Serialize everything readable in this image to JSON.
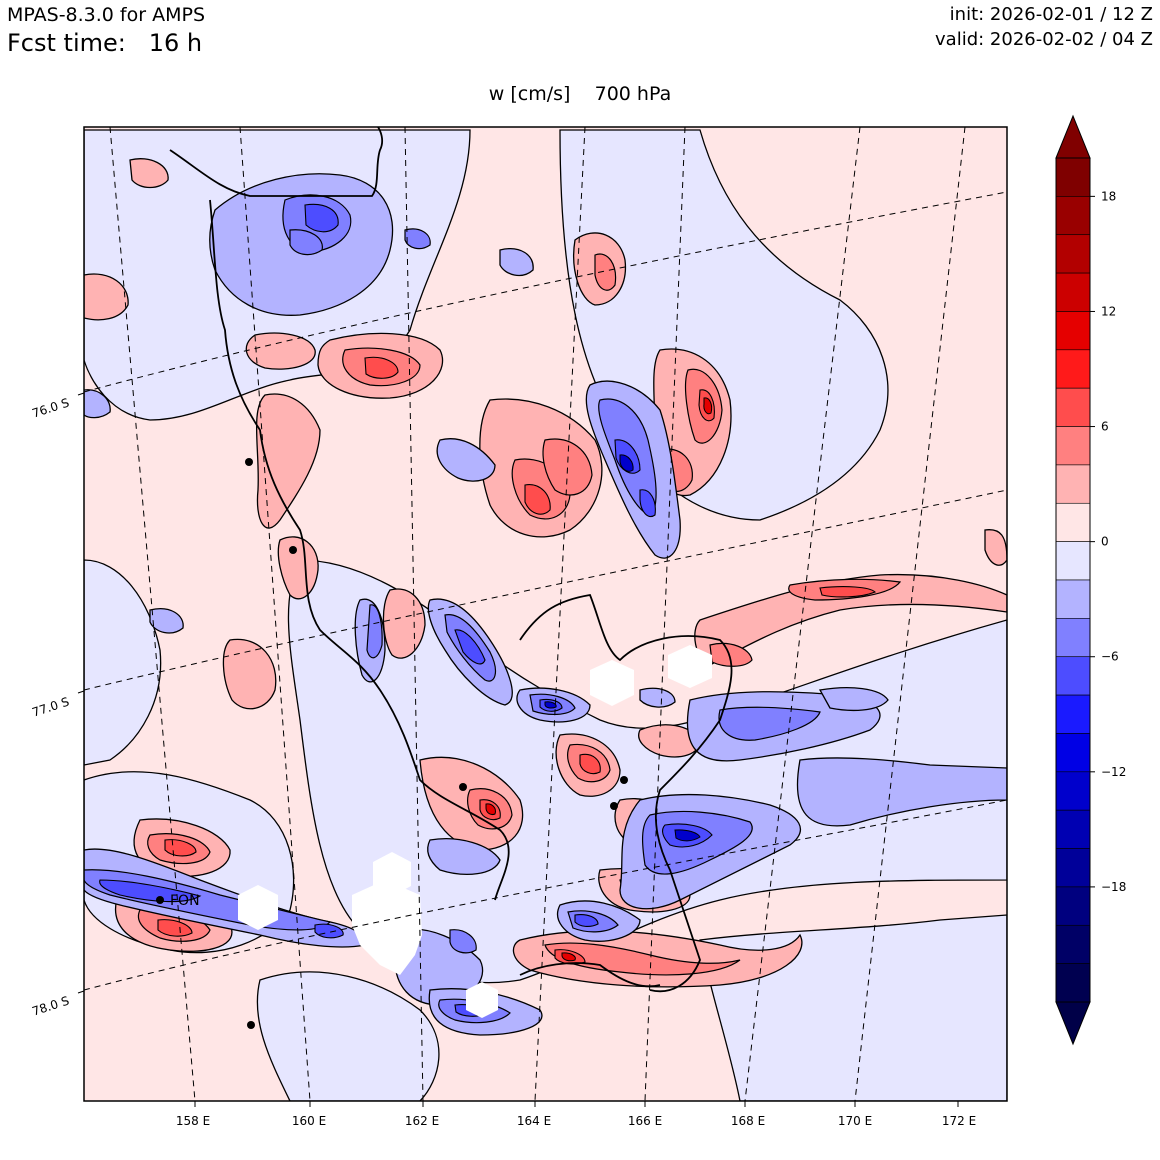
{
  "header": {
    "model": "MPAS-8.3.0 for AMPS",
    "fcst_label": "Fcst time:",
    "fcst_value": "16 h",
    "init": "init: 2026-02-01 / 12 Z",
    "valid": "valid: 2026-02-02 / 04 Z"
  },
  "title": {
    "variable": "w [cm/s]",
    "level": "700 hPa"
  },
  "axes": {
    "lon_ticks": [
      "158 E",
      "160 E",
      "162 E",
      "164 E",
      "166 E",
      "168 E",
      "170 E",
      "172 E"
    ],
    "lat_ticks": [
      "76.0 S",
      "77.0 S",
      "78.0 S"
    ]
  },
  "stations": [
    {
      "label": "FON"
    }
  ],
  "colorbar": {
    "tick_labels": [
      "18",
      "12",
      "6",
      "0",
      "−6",
      "−12",
      "−18"
    ],
    "colors": [
      "#7f0000",
      "#990000",
      "#b20000",
      "#cc0000",
      "#e50000",
      "#ff1a1a",
      "#ff4d4d",
      "#ff8080",
      "#ffb3b3",
      "#ffe6e6",
      "#e6e6ff",
      "#b3b3ff",
      "#8080ff",
      "#4d4dff",
      "#1a1aff",
      "#0000e5",
      "#0000cc",
      "#0000b2",
      "#000099",
      "#00007f",
      "#000066",
      "#000050"
    ],
    "extend_top_color": "#800000",
    "extend_bottom_color": "#000048"
  },
  "palette": {
    "red_light": "#ffe6e6",
    "red_mid": "#ffb3b3",
    "red_strong": "#ff8080",
    "red_deep": "#ff4d4d",
    "red_core": "#e50000",
    "blue_light": "#e6e6ff",
    "blue_mid": "#b3b3ff",
    "blue_strong": "#8080ff",
    "blue_deep": "#4d4dff",
    "blue_core": "#0000cc"
  }
}
